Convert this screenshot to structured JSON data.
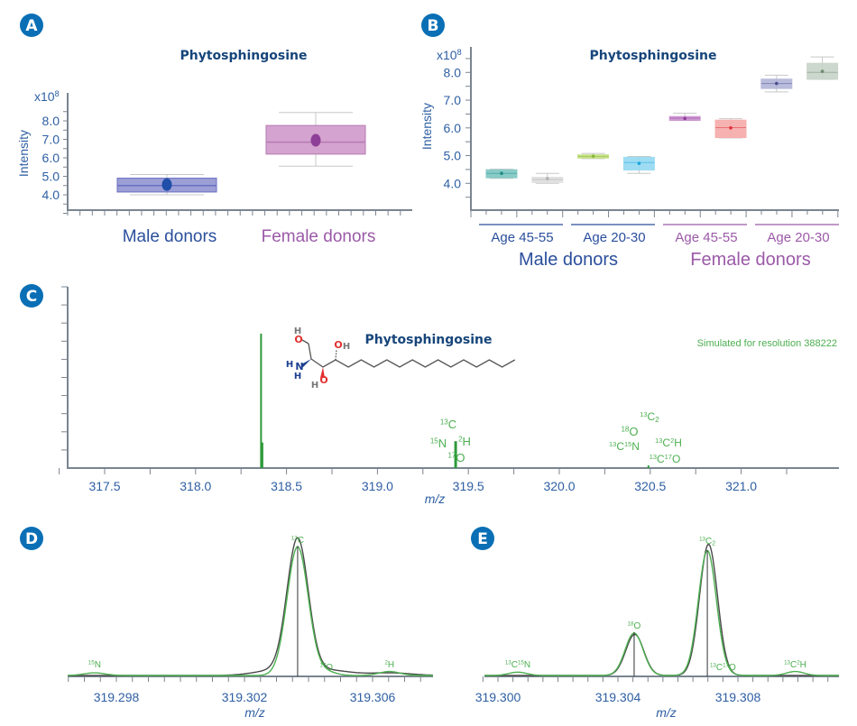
{
  "panels": [
    "A",
    "B",
    "C",
    "D",
    "E"
  ],
  "colors": {
    "accent": "#0a6fb5",
    "axis": "#7a8590",
    "tick_text": "#2e5fa3",
    "male": "#2b4f9c",
    "female": "#9b5aa8",
    "simulated": "#4caf50",
    "observed": "#4a4a4a"
  },
  "chart_data": [
    {
      "panel": "A",
      "type": "box",
      "title": "Phytosphingosine",
      "ylabel": "Intensity",
      "multiplier": "x10",
      "exponent": "8",
      "ylim": [
        3.0,
        9.0
      ],
      "yticks": [
        "4.0",
        "5.0",
        "6.0",
        "7.0",
        "8.0"
      ],
      "categories": [
        {
          "label": "Male donors",
          "color": "#9b9fd6",
          "edge": "#6a6fc0",
          "mean_color": "#1f4fa8",
          "text_color": "#2b4f9c",
          "whisker_low": 4.0,
          "q1": 4.15,
          "median": 4.5,
          "q3": 4.9,
          "whisker_high": 5.1,
          "mean": 4.55
        },
        {
          "label": "Female donors",
          "color": "#d4a3cf",
          "edge": "#b57ab3",
          "mean_color": "#8e3f98",
          "text_color": "#9b5aa8",
          "whisker_low": 5.55,
          "q1": 6.2,
          "median": 6.85,
          "q3": 7.75,
          "whisker_high": 8.45,
          "mean": 6.95
        }
      ]
    },
    {
      "panel": "B",
      "type": "box",
      "title": "Phytosphingosine",
      "ylabel": "Intensity",
      "multiplier": "x10",
      "exponent": "8",
      "ylim": [
        3.0,
        8.7
      ],
      "yticks": [
        "4.0",
        "5.0",
        "6.0",
        "7.0",
        "8.0"
      ],
      "groups": [
        {
          "label": "Male donors",
          "color": "#2b4f9c",
          "subgroups": [
            "Age 45-55",
            "Age 20-30"
          ]
        },
        {
          "label": "Female donors",
          "color": "#9b5aa8",
          "subgroups": [
            "Age 45-55",
            "Age 20-30"
          ]
        }
      ],
      "boxes": [
        {
          "color": "#7cc6c2",
          "mean_color": "#1f8a85",
          "whisker_low": 4.18,
          "q1": 4.2,
          "median": 4.36,
          "q3": 4.49,
          "whisker_high": 4.51,
          "mean": 4.36
        },
        {
          "color": "#dedede",
          "mean_color": "#b0b0b0",
          "whisker_low": 4.0,
          "q1": 4.03,
          "median": 4.14,
          "q3": 4.22,
          "whisker_high": 4.36,
          "mean": 4.17
        },
        {
          "color": "#c2e07f",
          "mean_color": "#8ab83a",
          "whisker_low": 4.89,
          "q1": 4.91,
          "median": 4.97,
          "q3": 5.03,
          "whisker_high": 5.08,
          "mean": 4.98
        },
        {
          "color": "#94d9f2",
          "mean_color": "#1aa5dc",
          "whisker_low": 4.36,
          "q1": 4.48,
          "median": 4.75,
          "q3": 4.94,
          "whisker_high": 4.97,
          "mean": 4.72
        },
        {
          "color": "#c98fce",
          "mean_color": "#8e3f98",
          "whisker_low": 6.27,
          "q1": 6.27,
          "median": 6.35,
          "q3": 6.41,
          "whisker_high": 6.53,
          "mean": 6.34
        },
        {
          "color": "#f6a9a9",
          "mean_color": "#e0303a",
          "whisker_low": 5.64,
          "q1": 5.65,
          "median": 6.01,
          "q3": 6.28,
          "whisker_high": 6.33,
          "mean": 6.0
        },
        {
          "color": "#b3b5d8",
          "mean_color": "#4a4f90",
          "whisker_low": 7.3,
          "q1": 7.42,
          "median": 7.6,
          "q3": 7.76,
          "whisker_high": 7.9,
          "mean": 7.6
        },
        {
          "color": "#c7d3c8",
          "mean_color": "#6f8a73",
          "whisker_low": 7.75,
          "q1": 7.75,
          "median": 8.0,
          "q3": 8.33,
          "whisker_high": 8.56,
          "mean": 8.04
        }
      ]
    },
    {
      "panel": "C",
      "type": "stick",
      "title": "Phytosphingosine",
      "xlabel": "m/z",
      "annotation": "Simulated for resolution 388222",
      "xticks": [
        "317.5",
        "318.0",
        "318.5",
        "319.0",
        "319.5",
        "320.0",
        "320.5",
        "321.0"
      ],
      "xlim": [
        317.3,
        321.3
      ],
      "peaks": [
        {
          "mz": 318.36,
          "rel": 1.0
        },
        {
          "mz": 318.365,
          "rel": 0.19
        },
        {
          "mz": 319.43,
          "rel": 0.2
        },
        {
          "mz": 320.49,
          "rel": 0.02
        }
      ],
      "labels": [
        {
          "parts": [
            [
              "13",
              "C"
            ]
          ]
        },
        {
          "parts": [
            [
              "15",
              "N"
            ]
          ]
        },
        {
          "parts": [
            [
              "2",
              "H"
            ]
          ]
        },
        {
          "parts": [
            [
              "17",
              "O"
            ]
          ]
        },
        {
          "parts": [
            [
              "13",
              "C"
            ],
            [
              "",
              "2"
            ]
          ]
        },
        {
          "parts": [
            [
              "18",
              "O"
            ]
          ]
        },
        {
          "parts": [
            [
              "13",
              "C"
            ],
            [
              "15",
              "N"
            ]
          ]
        },
        {
          "parts": [
            [
              "13",
              "C"
            ],
            [
              "2",
              "H"
            ]
          ]
        },
        {
          "parts": [
            [
              "13",
              "C"
            ],
            [
              "17",
              "O"
            ]
          ]
        }
      ],
      "molecule": {
        "atoms": [
          "H",
          "O",
          "H",
          "O",
          "H",
          "N",
          "H",
          "H",
          "O"
        ]
      }
    },
    {
      "panel": "D",
      "type": "line",
      "xlabel": "m/z",
      "xticks": [
        "319.298",
        "319.302",
        "319.306"
      ],
      "xlim": [
        319.2965,
        319.3079
      ],
      "simulated": [
        {
          "mz": 319.29732,
          "rel": 0.02,
          "label": [
            [
              "15",
              "N"
            ]
          ]
        },
        {
          "mz": 319.30366,
          "rel": 0.97,
          "label": [
            [
              "13",
              "C"
            ]
          ]
        },
        {
          "mz": 319.3045,
          "rel": 0.03,
          "label": [
            [
              "17",
              "O"
            ]
          ]
        },
        {
          "mz": 319.30653,
          "rel": 0.03,
          "label": [
            [
              "2",
              "H"
            ]
          ]
        }
      ],
      "observed": [
        {
          "mz": 319.30366,
          "rel": 1.0
        },
        {
          "mz": 319.303,
          "rel": 0.04
        },
        {
          "mz": 319.3046,
          "rel": 0.04
        },
        {
          "mz": 319.30653,
          "rel": 0.02
        }
      ],
      "sticks": [
        319.30366
      ]
    },
    {
      "panel": "E",
      "type": "line",
      "xlabel": "m/z",
      "xticks": [
        "319.300",
        "319.304",
        "319.308"
      ],
      "xlim": [
        319.2995,
        319.3114
      ],
      "simulated": [
        {
          "mz": 319.30066,
          "rel": 0.025,
          "label": [
            [
              "13",
              "C"
            ],
            [
              "15",
              "N"
            ]
          ]
        },
        {
          "mz": 319.30454,
          "rel": 0.32,
          "label": [
            [
              "18",
              "O"
            ]
          ]
        },
        {
          "mz": 319.30698,
          "rel": 0.94,
          "label": [
            [
              "13",
              "C"
            ],
            [
              "",
              "2"
            ]
          ]
        },
        {
          "mz": 319.3075,
          "rel": 0.01,
          "label": [
            [
              "13",
              "C"
            ],
            [
              "17",
              "O"
            ]
          ]
        },
        {
          "mz": 319.30991,
          "rel": 0.03,
          "label": [
            [
              "13",
              "C"
            ],
            [
              "2",
              "H"
            ]
          ]
        }
      ],
      "observed": [
        {
          "mz": 319.30456,
          "rel": 0.31
        },
        {
          "mz": 319.30702,
          "rel": 0.99
        }
      ],
      "sticks": [
        319.30454,
        319.30698
      ]
    }
  ]
}
